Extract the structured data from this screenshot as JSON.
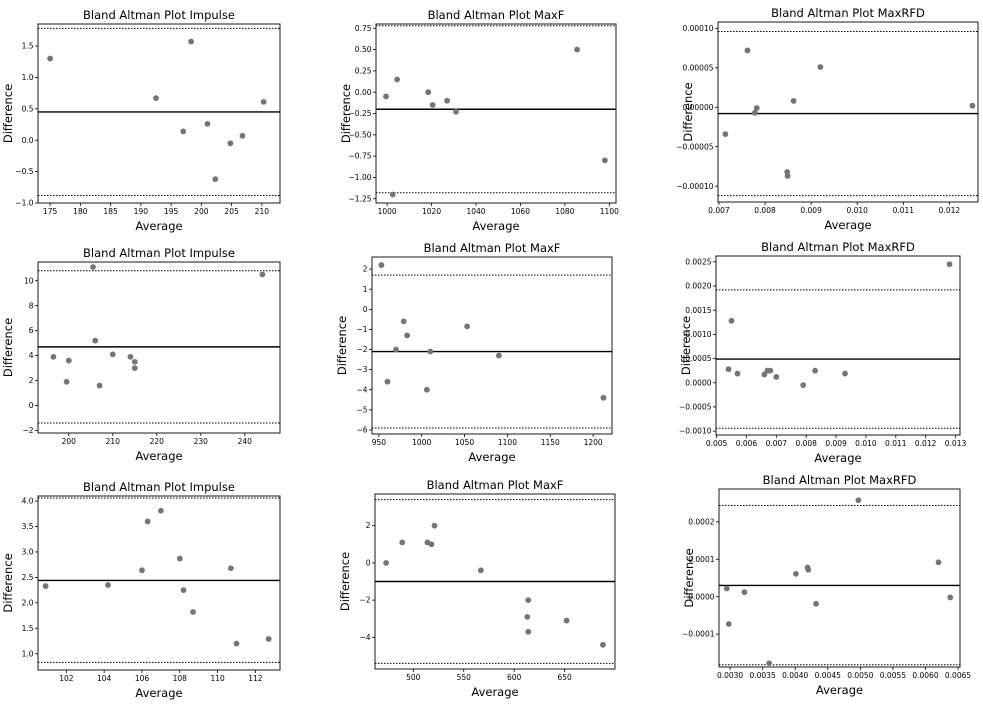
{
  "chart_data": [
    {
      "type": "scatter",
      "title": "Bland Altman Plot Impulse",
      "xlabel": "Average",
      "ylabel": "Difference",
      "xlim": [
        173,
        213
      ],
      "ylim": [
        -1.0,
        1.85
      ],
      "xticks": [
        175,
        180,
        185,
        190,
        195,
        200,
        205,
        210
      ],
      "yticks": [
        -1.0,
        -0.5,
        0.0,
        0.5,
        1.0,
        1.5
      ],
      "ytick_decimals": 1,
      "mean_line": 0.45,
      "loa_upper": 1.78,
      "loa_lower": -0.88,
      "points": [
        [
          175,
          1.3
        ],
        [
          192.5,
          0.67
        ],
        [
          197,
          0.14
        ],
        [
          198.3,
          1.57
        ],
        [
          201,
          0.26
        ],
        [
          202.3,
          -0.62
        ],
        [
          204.8,
          -0.05
        ],
        [
          206.8,
          0.07
        ],
        [
          210.3,
          0.61
        ]
      ]
    },
    {
      "type": "scatter",
      "title": "Bland Altman Plot MaxF",
      "xlabel": "Average",
      "ylabel": "Difference",
      "xlim": [
        995,
        1103
      ],
      "ylim": [
        -1.3,
        0.8
      ],
      "xticks": [
        1000,
        1020,
        1040,
        1060,
        1080,
        1100
      ],
      "yticks": [
        -1.25,
        -1.0,
        -0.75,
        -0.5,
        -0.25,
        0.0,
        0.25,
        0.5,
        0.75
      ],
      "ytick_decimals": 2,
      "mean_line": -0.2,
      "loa_upper": 0.78,
      "loa_lower": -1.18,
      "points": [
        [
          999.5,
          -0.05
        ],
        [
          1002.5,
          -1.2
        ],
        [
          1004.5,
          0.15
        ],
        [
          1018.5,
          0.0
        ],
        [
          1020.5,
          -0.15
        ],
        [
          1027,
          -0.1
        ],
        [
          1031,
          -0.23
        ],
        [
          1085.5,
          0.5
        ],
        [
          1098,
          -0.8
        ]
      ]
    },
    {
      "type": "scatter",
      "title": "Bland Altman Plot MaxRFD",
      "xlabel": "Average",
      "ylabel": "Difference",
      "xlim": [
        0.00698,
        0.01262
      ],
      "ylim": [
        -0.00012,
        0.000108
      ],
      "xticks": [
        0.007,
        0.008,
        0.009,
        0.01,
        0.011,
        0.012
      ],
      "xtick_decimals": 3,
      "yticks": [
        -0.0001,
        -5e-05,
        0.0,
        5e-05,
        0.0001
      ],
      "ytick_decimals": 5,
      "mean_line": -8e-06,
      "loa_upper": 9.6e-05,
      "loa_lower": -0.000112,
      "points": [
        [
          0.00714,
          -3.4e-05
        ],
        [
          0.00762,
          7.2e-05
        ],
        [
          0.00778,
          -7e-06
        ],
        [
          0.00782,
          -1e-06
        ],
        [
          0.00848,
          -8.2e-05
        ],
        [
          0.00849,
          -8.7e-05
        ],
        [
          0.00862,
          8e-06
        ],
        [
          0.0092,
          5.1e-05
        ],
        [
          0.0125,
          2e-06
        ]
      ]
    },
    {
      "type": "scatter",
      "title": "Bland Altman Plot Impulse",
      "xlabel": "Average",
      "ylabel": "Difference",
      "xlim": [
        193,
        248
      ],
      "ylim": [
        -2.2,
        11.5
      ],
      "xticks": [
        200,
        210,
        220,
        230,
        240
      ],
      "yticks": [
        -2,
        0,
        2,
        4,
        6,
        8,
        10
      ],
      "ytick_decimals": 0,
      "mean_line": 4.7,
      "loa_upper": 10.8,
      "loa_lower": -1.4,
      "points": [
        [
          196.5,
          3.9
        ],
        [
          199.5,
          1.9
        ],
        [
          200,
          3.6
        ],
        [
          205.5,
          11.1
        ],
        [
          206,
          5.2
        ],
        [
          207,
          1.6
        ],
        [
          210,
          4.1
        ],
        [
          214,
          3.9
        ],
        [
          215,
          3.5
        ],
        [
          215,
          3.0
        ],
        [
          244,
          10.5
        ]
      ]
    },
    {
      "type": "scatter",
      "title": "Bland Altman Plot MaxF",
      "xlabel": "Average",
      "ylabel": "Difference",
      "xlim": [
        942,
        1222
      ],
      "ylim": [
        -6.2,
        2.6
      ],
      "xticks": [
        950,
        1000,
        1050,
        1100,
        1150,
        1200
      ],
      "yticks": [
        -6,
        -5,
        -4,
        -3,
        -2,
        -1,
        0,
        1,
        2
      ],
      "ytick_decimals": 0,
      "mean_line": -2.1,
      "loa_upper": 1.7,
      "loa_lower": -5.9,
      "points": [
        [
          953,
          2.2
        ],
        [
          960,
          -3.6
        ],
        [
          970,
          -2.0
        ],
        [
          979,
          -0.6
        ],
        [
          983,
          -1.3
        ],
        [
          1006,
          -4.0
        ],
        [
          1010,
          -2.1
        ],
        [
          1053,
          -0.85
        ],
        [
          1090,
          -2.3
        ],
        [
          1212,
          -4.4
        ]
      ]
    },
    {
      "type": "scatter",
      "title": "Bland Altman Plot MaxRFD",
      "xlabel": "Average",
      "ylabel": "Difference",
      "xlim": [
        0.00498,
        0.01315
      ],
      "ylim": [
        -0.00108,
        0.00262
      ],
      "xticks": [
        0.005,
        0.006,
        0.007,
        0.008,
        0.009,
        0.01,
        0.011,
        0.012,
        0.013
      ],
      "xtick_decimals": 3,
      "yticks": [
        -0.001,
        -0.0005,
        0.0,
        0.0005,
        0.001,
        0.0015,
        0.002,
        0.0025
      ],
      "ytick_decimals": 4,
      "mean_line": 0.00049,
      "loa_upper": 0.00192,
      "loa_lower": -0.00094,
      "points": [
        [
          0.0054,
          0.00028
        ],
        [
          0.0055,
          0.00128
        ],
        [
          0.0057,
          0.00019
        ],
        [
          0.0066,
          0.00017
        ],
        [
          0.0067,
          0.00025
        ],
        [
          0.0068,
          0.00025
        ],
        [
          0.007,
          0.00012
        ],
        [
          0.0079,
          -5e-05
        ],
        [
          0.0083,
          0.00025
        ],
        [
          0.0093,
          0.00019
        ],
        [
          0.0128,
          0.00245
        ]
      ]
    },
    {
      "type": "scatter",
      "title": "Bland Altman Plot Impulse",
      "xlabel": "Average",
      "ylabel": "Difference",
      "xlim": [
        100.5,
        113.3
      ],
      "ylim": [
        0.68,
        4.1
      ],
      "xticks": [
        102,
        104,
        106,
        108,
        110,
        112
      ],
      "yticks": [
        1.0,
        1.5,
        2.0,
        2.5,
        3.0,
        3.5,
        4.0
      ],
      "ytick_decimals": 1,
      "mean_line": 2.44,
      "loa_upper": 4.06,
      "loa_lower": 0.83,
      "points": [
        [
          100.9,
          2.33
        ],
        [
          104.2,
          2.35
        ],
        [
          106.0,
          2.64
        ],
        [
          106.3,
          3.6
        ],
        [
          107.0,
          3.81
        ],
        [
          108.0,
          2.87
        ],
        [
          108.2,
          2.25
        ],
        [
          108.7,
          1.82
        ],
        [
          110.7,
          2.68
        ],
        [
          111.0,
          1.2
        ],
        [
          112.7,
          1.29
        ]
      ]
    },
    {
      "type": "scatter",
      "title": "Bland Altman Plot MaxF",
      "xlabel": "Average",
      "ylabel": "Difference",
      "xlim": [
        462,
        700
      ],
      "ylim": [
        -5.7,
        3.7
      ],
      "xticks": [
        500,
        550,
        600,
        650
      ],
      "yticks": [
        -4,
        -2,
        0,
        2
      ],
      "ytick_decimals": 0,
      "mean_line": -1.0,
      "loa_upper": 3.4,
      "loa_lower": -5.4,
      "points": [
        [
          473,
          0.0
        ],
        [
          489,
          1.1
        ],
        [
          514,
          1.1
        ],
        [
          518,
          1.0
        ],
        [
          521,
          2.0
        ],
        [
          567,
          -0.4
        ],
        [
          613,
          -2.9
        ],
        [
          614,
          -3.7
        ],
        [
          614,
          -2.0
        ],
        [
          652,
          -3.1
        ],
        [
          688,
          -4.4
        ]
      ]
    },
    {
      "type": "scatter",
      "title": "Bland Altman Plot MaxRFD",
      "xlabel": "Average",
      "ylabel": "Difference",
      "xlim": [
        0.00283,
        0.00653
      ],
      "ylim": [
        -0.000188,
        0.000288
      ],
      "xticks": [
        0.003,
        0.0035,
        0.004,
        0.0045,
        0.005,
        0.0055,
        0.006,
        0.0065
      ],
      "xtick_decimals": 4,
      "yticks": [
        -0.0001,
        0.0,
        0.0001,
        0.0002
      ],
      "ytick_decimals": 4,
      "mean_line": 3e-05,
      "loa_upper": 0.000244,
      "loa_lower": -0.000182,
      "points": [
        [
          0.00295,
          2.2e-05
        ],
        [
          0.00298,
          -7.3e-05
        ],
        [
          0.00322,
          1.2e-05
        ],
        [
          0.0036,
          -0.000178
        ],
        [
          0.00401,
          6.1e-05
        ],
        [
          0.00419,
          7.8e-05
        ],
        [
          0.0042,
          7.2e-05
        ],
        [
          0.00432,
          -1.9e-05
        ],
        [
          0.00497,
          0.000258
        ],
        [
          0.0062,
          9.2e-05
        ],
        [
          0.00638,
          -2e-06
        ]
      ]
    }
  ]
}
